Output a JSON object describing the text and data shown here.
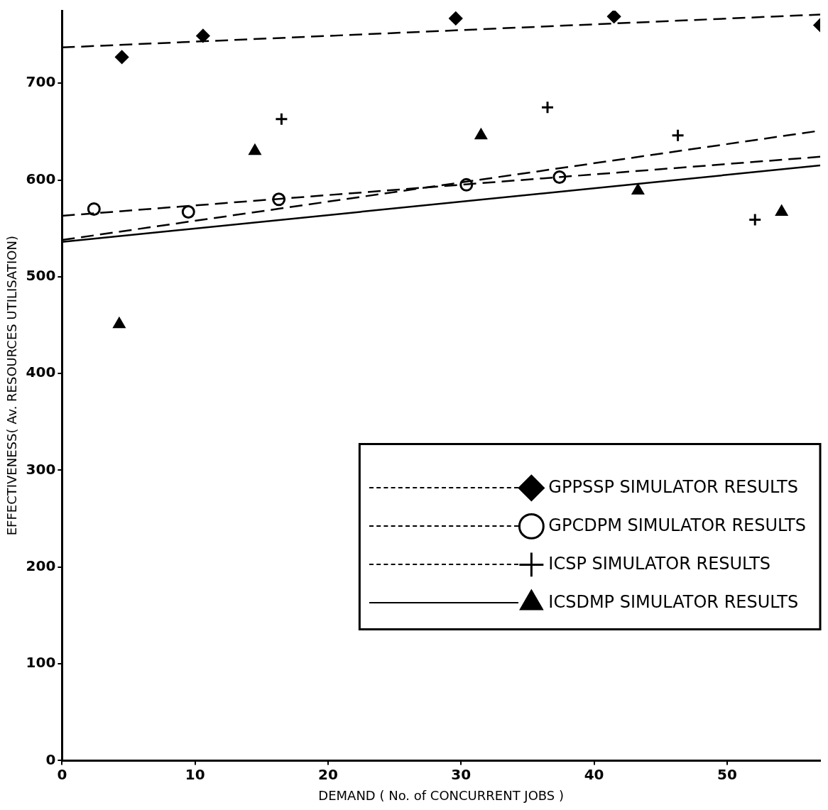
{
  "chart_data": {
    "type": "scatter",
    "xlabel": "DEMAND ( No. of CONCURRENT JOBS )",
    "ylabel": "EFFECTIVENESS( Av. RESOURCES UTILISATION)",
    "xlim": [
      0,
      57
    ],
    "ylim": [
      0,
      775
    ],
    "xticks": [
      0,
      10,
      20,
      30,
      40,
      50
    ],
    "yticks": [
      0,
      100,
      200,
      300,
      400,
      500,
      600,
      700
    ],
    "grid": false,
    "legend": "bottom right",
    "series": [
      {
        "name": "GPPSSP SIMULATOR RESULTS",
        "marker": "diamond",
        "color": "#000000",
        "x": [
          4.5,
          10.6,
          29.6,
          41.5,
          57
        ],
        "values": [
          727,
          749,
          767,
          769,
          760
        ]
      },
      {
        "type": "line",
        "line_style": "dashed",
        "marker": "none",
        "color": "#000000",
        "x": [
          0,
          57
        ],
        "values": [
          737,
          771
        ]
      },
      {
        "name": "GPCDPM SIMULATOR RESULTS",
        "marker": "circle",
        "color": "#000000",
        "x": [
          2.4,
          9.5,
          16.3,
          30.4,
          37.4
        ],
        "values": [
          570,
          567,
          580,
          595,
          603
        ]
      },
      {
        "type": "line",
        "line_style": "dashed",
        "marker": "none",
        "color": "#000000",
        "x": [
          0,
          57
        ],
        "values": [
          563,
          624
        ]
      },
      {
        "name": "ICSP SIMULATOR RESULTS",
        "marker": "cross",
        "color": "#000000",
        "x": [
          16.5,
          36.5,
          46.3,
          52.1
        ],
        "values": [
          663,
          675,
          646,
          559
        ]
      },
      {
        "type": "line",
        "line_style": "dashed",
        "marker": "none",
        "color": "#000000",
        "x": [
          0,
          57
        ],
        "values": [
          538,
          651
        ]
      },
      {
        "name": "ICSDMP SIMULATOR RESULTS",
        "marker": "triangle",
        "color": "#000000",
        "x": [
          4.3,
          14.5,
          31.5,
          43.3,
          54.1
        ],
        "values": [
          451,
          630,
          646,
          589,
          567
        ]
      },
      {
        "type": "line",
        "line_style": "solid",
        "marker": "none",
        "color": "#000000",
        "x": [
          0,
          57
        ],
        "values": [
          536,
          615
        ]
      }
    ]
  }
}
